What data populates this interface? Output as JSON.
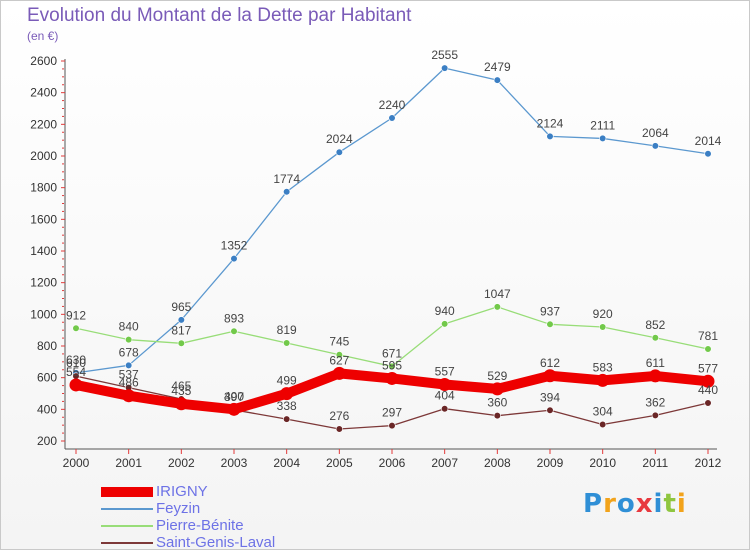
{
  "chart_data": {
    "type": "line",
    "title": "Evolution du Montant de la Dette par Habitant",
    "subtitle": "(en €)",
    "x": [
      "2000",
      "2001",
      "2002",
      "2003",
      "2004",
      "2005",
      "2006",
      "2007",
      "2008",
      "2009",
      "2010",
      "2011",
      "2012"
    ],
    "ylim": [
      200,
      2600
    ],
    "yticks": [
      200,
      400,
      600,
      800,
      1000,
      1200,
      1400,
      1600,
      1800,
      2000,
      2200,
      2400,
      2600
    ],
    "grid": false,
    "legend": "bottom-left",
    "series": [
      {
        "name": "Feyzin",
        "color": "#5b98cf",
        "point_color": "#3b7fc4",
        "values": [
          630,
          678,
          965,
          1352,
          1774,
          2024,
          2240,
          2555,
          2479,
          2124,
          2111,
          2064,
          2014
        ]
      },
      {
        "name": "Pierre-Bénite",
        "color": "#98dd78",
        "point_color": "#72c94a",
        "values": [
          912,
          840,
          817,
          893,
          819,
          745,
          671,
          940,
          1047,
          937,
          920,
          852,
          781
        ]
      },
      {
        "name": "Saint-Genis-Laval",
        "color": "#7d3838",
        "point_color": "#6a2626",
        "values": [
          610,
          537,
          465,
          397,
          338,
          276,
          297,
          404,
          360,
          394,
          304,
          362,
          440
        ]
      },
      {
        "name": "IRIGNY",
        "color": "#ee0000",
        "point_color": "#ee0000",
        "highlight": true,
        "values": [
          554,
          486,
          435,
          400,
          499,
          627,
          595,
          557,
          529,
          612,
          583,
          611,
          577
        ]
      }
    ]
  },
  "legend_items": [
    {
      "name": "IRIGNY",
      "color": "#ee0000",
      "thick": true
    },
    {
      "name": "Feyzin",
      "color": "#5b98cf",
      "thick": false
    },
    {
      "name": "Pierre-Bénite",
      "color": "#98dd78",
      "thick": false
    },
    {
      "name": "Saint-Genis-Laval",
      "color": "#7d3838",
      "thick": false
    }
  ],
  "logo": {
    "letters": [
      "P",
      "r",
      "o",
      "x",
      "i",
      "t",
      "i"
    ],
    "colors": [
      "#2f8fd6",
      "#f2a31b",
      "#2f8fd6",
      "#e8393f",
      "#2f8fd6",
      "#8fc63f",
      "#f2a31b"
    ]
  },
  "axis_color": "#555555",
  "tick_color": "#e23a3a"
}
